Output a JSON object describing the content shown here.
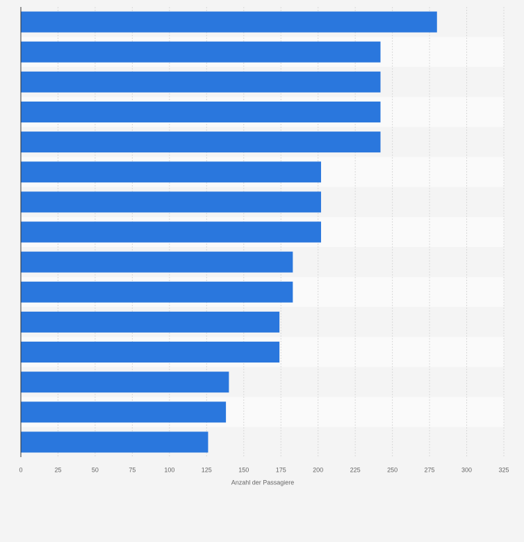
{
  "chart_data": {
    "type": "bar",
    "orientation": "horizontal",
    "xlabel": "Anzahl der Passagiere",
    "categories": [
      null,
      null,
      null,
      null,
      null,
      null,
      null,
      null,
      null,
      null,
      null,
      null,
      null,
      null,
      null
    ],
    "values": [
      280,
      242,
      242,
      242,
      242,
      202,
      202,
      202,
      183,
      183,
      174,
      174,
      140,
      138,
      126
    ],
    "color": "#2a77dd",
    "xlim": [
      0,
      325
    ],
    "xticks": [
      0,
      25,
      50,
      75,
      100,
      125,
      150,
      175,
      200,
      225,
      250,
      275,
      300,
      325
    ],
    "grid": true
  }
}
